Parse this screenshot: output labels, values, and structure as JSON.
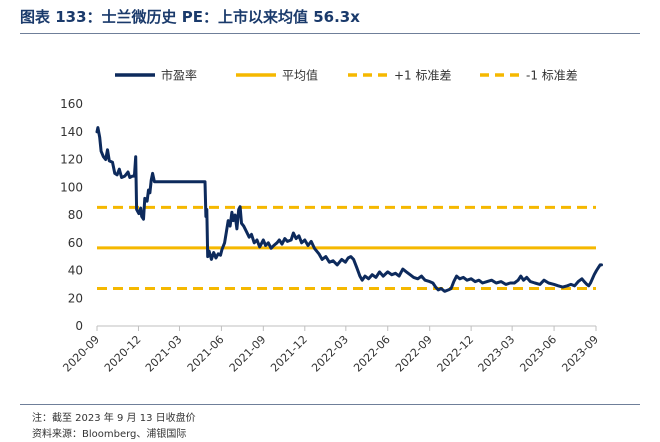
{
  "header": {
    "title": "图表 133：士兰微历史 PE：上市以来均值 56.3x"
  },
  "footer": {
    "note": "注：截至 2023 年 9 月 13 日收盘价",
    "source": "资料来源：Bloomberg、浦银国际"
  },
  "colors": {
    "pe_line": "#0d2a5c",
    "mean_line": "#f5b800",
    "band_line": "#f5b800"
  },
  "chart_data": {
    "type": "line",
    "title": "图表 133：士兰微历史 PE：上市以来均值 56.3x",
    "xlabel": "",
    "ylabel": "",
    "ylim": [
      0,
      160
    ],
    "y_ticks": [
      0,
      20,
      40,
      60,
      80,
      100,
      120,
      140,
      160
    ],
    "x_range": [
      "2020-09",
      "2023-09"
    ],
    "x_ticks": [
      "2020-09",
      "2020-12",
      "2021-03",
      "2021-06",
      "2021-09",
      "2021-12",
      "2022-03",
      "2022-06",
      "2022-09",
      "2022-12",
      "2023-03",
      "2023-06",
      "2023-09"
    ],
    "grid": false,
    "legend_position": "top",
    "mean": 56.3,
    "plus_1_sd": 85.5,
    "minus_1_sd": 27.0,
    "series": [
      {
        "name": "市盈率",
        "style": "solid-thick",
        "points": [
          [
            "2020-09-01",
            140
          ],
          [
            "2020-09-03",
            143
          ],
          [
            "2020-09-07",
            136
          ],
          [
            "2020-09-10",
            126
          ],
          [
            "2020-09-15",
            122
          ],
          [
            "2020-09-20",
            120
          ],
          [
            "2020-09-24",
            127
          ],
          [
            "2020-09-28",
            119
          ],
          [
            "2020-10-05",
            118
          ],
          [
            "2020-10-10",
            110
          ],
          [
            "2020-10-15",
            109
          ],
          [
            "2020-10-20",
            113
          ],
          [
            "2020-10-25",
            107
          ],
          [
            "2020-11-01",
            108
          ],
          [
            "2020-11-08",
            111
          ],
          [
            "2020-11-12",
            107
          ],
          [
            "2020-11-18",
            108
          ],
          [
            "2020-11-22",
            108
          ],
          [
            "2020-11-25",
            122
          ],
          [
            "2020-11-27",
            84
          ],
          [
            "2020-12-02",
            81
          ],
          [
            "2020-12-06",
            85
          ],
          [
            "2020-12-08",
            79
          ],
          [
            "2020-12-12",
            77
          ],
          [
            "2020-12-15",
            92
          ],
          [
            "2020-12-20",
            90
          ],
          [
            "2020-12-23",
            98
          ],
          [
            "2020-12-26",
            96
          ],
          [
            "2020-12-29",
            105
          ],
          [
            "2021-01-01",
            110
          ],
          [
            "2021-01-05",
            104
          ],
          [
            "2021-02-01",
            104
          ],
          [
            "2021-03-01",
            104
          ],
          [
            "2021-04-01",
            104
          ],
          [
            "2021-04-26",
            104
          ],
          [
            "2021-04-28",
            79
          ],
          [
            "2021-04-30",
            84
          ],
          [
            "2021-05-02",
            50
          ],
          [
            "2021-05-05",
            54
          ],
          [
            "2021-05-10",
            48
          ],
          [
            "2021-05-15",
            53
          ],
          [
            "2021-05-20",
            49
          ],
          [
            "2021-05-25",
            52
          ],
          [
            "2021-05-30",
            51
          ],
          [
            "2021-06-02",
            55
          ],
          [
            "2021-06-08",
            60
          ],
          [
            "2021-06-12",
            68
          ],
          [
            "2021-06-16",
            76
          ],
          [
            "2021-06-20",
            72
          ],
          [
            "2021-06-24",
            82
          ],
          [
            "2021-06-27",
            76
          ],
          [
            "2021-07-01",
            80
          ],
          [
            "2021-07-05",
            70
          ],
          [
            "2021-07-09",
            84
          ],
          [
            "2021-07-12",
            86
          ],
          [
            "2021-07-15",
            74
          ],
          [
            "2021-07-20",
            72
          ],
          [
            "2021-07-26",
            68
          ],
          [
            "2021-08-01",
            64
          ],
          [
            "2021-08-06",
            66
          ],
          [
            "2021-08-12",
            60
          ],
          [
            "2021-08-18",
            62
          ],
          [
            "2021-08-24",
            57
          ],
          [
            "2021-09-01",
            62
          ],
          [
            "2021-09-06",
            58
          ],
          [
            "2021-09-12",
            60
          ],
          [
            "2021-09-18",
            56
          ],
          [
            "2021-09-24",
            58
          ],
          [
            "2021-10-01",
            60
          ],
          [
            "2021-10-06",
            62
          ],
          [
            "2021-10-12",
            59
          ],
          [
            "2021-10-18",
            63
          ],
          [
            "2021-10-24",
            61
          ],
          [
            "2021-11-01",
            62
          ],
          [
            "2021-11-06",
            67
          ],
          [
            "2021-11-12",
            63
          ],
          [
            "2021-11-18",
            65
          ],
          [
            "2021-11-24",
            60
          ],
          [
            "2021-12-01",
            62
          ],
          [
            "2021-12-08",
            58
          ],
          [
            "2021-12-15",
            61
          ],
          [
            "2021-12-22",
            56
          ],
          [
            "2022-01-01",
            52
          ],
          [
            "2022-01-08",
            48
          ],
          [
            "2022-01-16",
            50
          ],
          [
            "2022-01-24",
            46
          ],
          [
            "2022-02-01",
            47
          ],
          [
            "2022-02-10",
            44
          ],
          [
            "2022-02-20",
            48
          ],
          [
            "2022-02-28",
            46
          ],
          [
            "2022-03-06",
            49
          ],
          [
            "2022-03-12",
            50
          ],
          [
            "2022-03-18",
            48
          ],
          [
            "2022-03-25",
            42
          ],
          [
            "2022-04-01",
            36
          ],
          [
            "2022-04-06",
            33
          ],
          [
            "2022-04-12",
            36
          ],
          [
            "2022-04-20",
            34
          ],
          [
            "2022-04-28",
            37
          ],
          [
            "2022-05-06",
            35
          ],
          [
            "2022-05-14",
            39
          ],
          [
            "2022-05-22",
            36
          ],
          [
            "2022-06-01",
            39
          ],
          [
            "2022-06-10",
            37
          ],
          [
            "2022-06-18",
            38
          ],
          [
            "2022-06-26",
            36
          ],
          [
            "2022-07-04",
            41
          ],
          [
            "2022-07-12",
            39
          ],
          [
            "2022-07-20",
            37
          ],
          [
            "2022-07-28",
            35
          ],
          [
            "2022-08-06",
            34
          ],
          [
            "2022-08-14",
            36
          ],
          [
            "2022-08-22",
            33
          ],
          [
            "2022-09-01",
            32
          ],
          [
            "2022-09-08",
            31
          ],
          [
            "2022-09-14",
            28
          ],
          [
            "2022-09-20",
            26
          ],
          [
            "2022-09-26",
            27
          ],
          [
            "2022-10-04",
            25
          ],
          [
            "2022-10-12",
            26
          ],
          [
            "2022-10-18",
            27
          ],
          [
            "2022-10-24",
            32
          ],
          [
            "2022-10-30",
            36
          ],
          [
            "2022-11-06",
            34
          ],
          [
            "2022-11-14",
            35
          ],
          [
            "2022-11-22",
            33
          ],
          [
            "2022-12-01",
            34
          ],
          [
            "2022-12-10",
            32
          ],
          [
            "2022-12-18",
            33
          ],
          [
            "2022-12-26",
            31
          ],
          [
            "2023-01-05",
            32
          ],
          [
            "2023-01-15",
            33
          ],
          [
            "2023-01-25",
            31
          ],
          [
            "2023-02-05",
            32
          ],
          [
            "2023-02-15",
            30
          ],
          [
            "2023-02-25",
            31
          ],
          [
            "2023-03-06",
            31
          ],
          [
            "2023-03-14",
            33
          ],
          [
            "2023-03-20",
            36
          ],
          [
            "2023-03-26",
            33
          ],
          [
            "2023-04-02",
            35
          ],
          [
            "2023-04-10",
            32
          ],
          [
            "2023-04-20",
            31
          ],
          [
            "2023-05-01",
            30
          ],
          [
            "2023-05-10",
            33
          ],
          [
            "2023-05-20",
            31
          ],
          [
            "2023-06-01",
            30
          ],
          [
            "2023-06-10",
            29
          ],
          [
            "2023-06-20",
            28
          ],
          [
            "2023-06-30",
            29
          ],
          [
            "2023-07-08",
            30
          ],
          [
            "2023-07-16",
            29
          ],
          [
            "2023-07-24",
            32
          ],
          [
            "2023-08-01",
            34
          ],
          [
            "2023-08-06",
            32
          ],
          [
            "2023-08-12",
            30
          ],
          [
            "2023-08-16",
            29
          ],
          [
            "2023-08-20",
            31
          ],
          [
            "2023-08-24",
            34
          ],
          [
            "2023-08-28",
            37
          ],
          [
            "2023-09-02",
            40
          ],
          [
            "2023-09-06",
            42
          ],
          [
            "2023-09-10",
            44
          ],
          [
            "2023-09-13",
            44
          ]
        ]
      },
      {
        "name": "平均值",
        "style": "solid",
        "constant": 56.3
      },
      {
        "name": "+1 标准差",
        "style": "dashed",
        "constant": 85.5
      },
      {
        "name": "-1 标准差",
        "style": "dashed",
        "constant": 27.0
      }
    ]
  }
}
